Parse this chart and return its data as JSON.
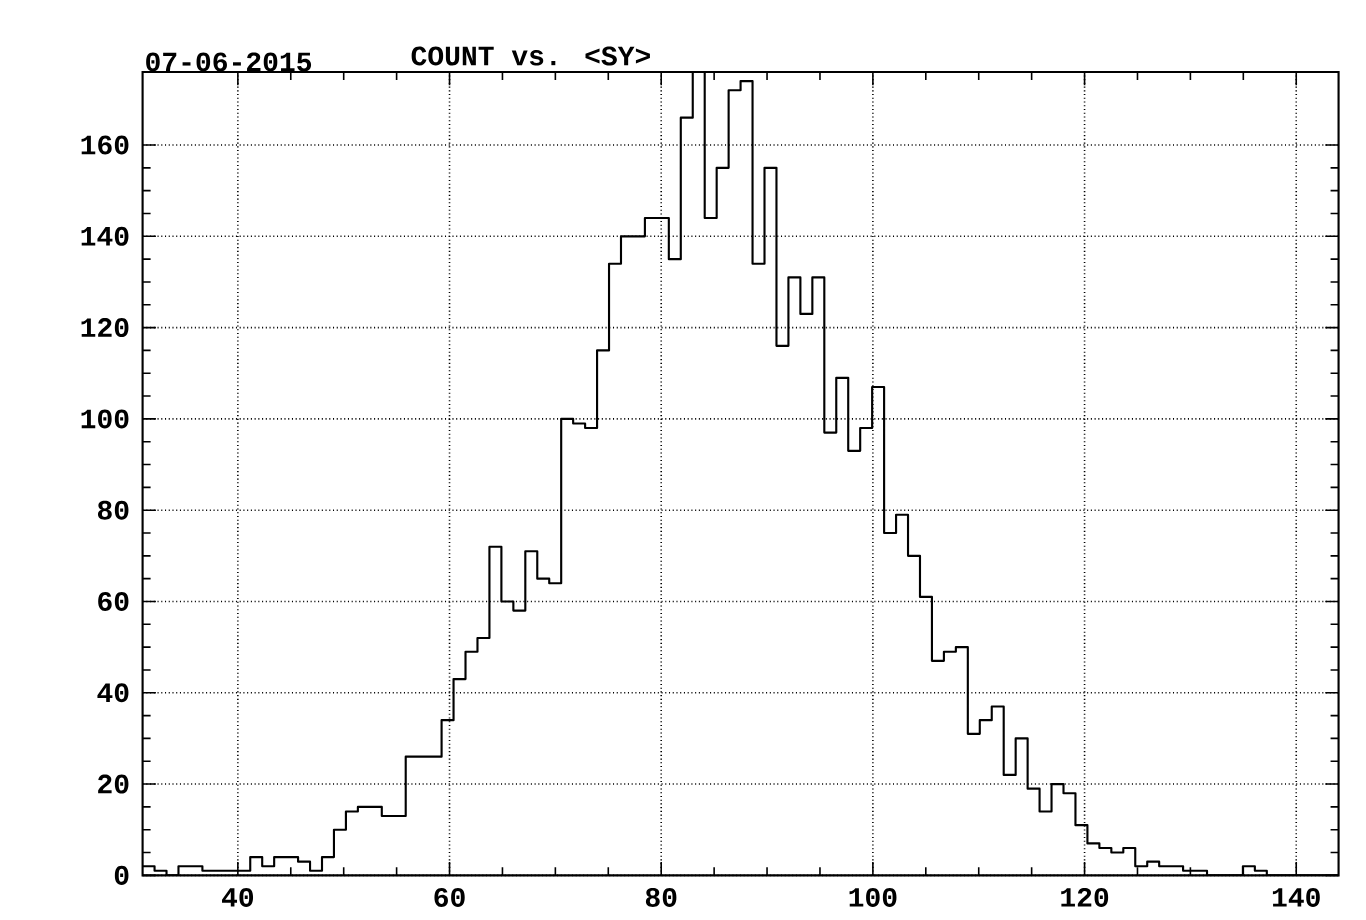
{
  "chart_data": {
    "type": "histogram",
    "title": "COUNT      vs.      <SY>",
    "annotations": [
      "07-06-2015"
    ],
    "bins": [
      31.0,
      32.13,
      33.26,
      34.39,
      35.52,
      36.65,
      37.78,
      38.91,
      40.04,
      41.17,
      42.3,
      43.43,
      44.56,
      45.69,
      46.82,
      47.95,
      49.08,
      50.21,
      51.34,
      52.47,
      53.6,
      54.73,
      55.86,
      56.99,
      58.12,
      59.25,
      60.38,
      61.51,
      62.64,
      63.77,
      64.9,
      66.03,
      67.16,
      68.29,
      69.42,
      70.55,
      71.68,
      72.81,
      73.94,
      75.07,
      76.2,
      77.33,
      78.46,
      79.59,
      80.72,
      81.85,
      82.98,
      84.11,
      85.24,
      86.37,
      87.5,
      88.63,
      89.76,
      90.89,
      92.02,
      93.15,
      94.28,
      95.41,
      96.54,
      97.67,
      98.8,
      99.93,
      101.06,
      102.19,
      103.32,
      104.45,
      105.58,
      106.71,
      107.84,
      108.97,
      110.1,
      111.23,
      112.36,
      113.49,
      114.62,
      115.75,
      116.88,
      118.01,
      119.14,
      120.27,
      121.4,
      122.53,
      123.66,
      124.79,
      125.92,
      127.05,
      128.18,
      129.31,
      130.44,
      131.57,
      132.7,
      133.83,
      134.96,
      136.09,
      137.22,
      138.35,
      139.48,
      140.61,
      141.74,
      142.87,
      144.0
    ],
    "values": [
      2,
      1,
      0,
      2,
      2,
      1,
      1,
      1,
      1,
      4,
      2,
      4,
      4,
      3,
      1,
      4,
      10,
      14,
      15,
      15,
      13,
      13,
      26,
      26,
      26,
      34,
      43,
      49,
      52,
      72,
      60,
      58,
      71,
      65,
      64,
      100,
      99,
      98,
      115,
      134,
      140,
      140,
      144,
      144,
      135,
      166,
      176,
      144,
      155,
      172,
      174,
      134,
      155,
      116,
      131,
      123,
      131,
      97,
      109,
      93,
      98,
      107,
      75,
      79,
      70,
      61,
      47,
      49,
      50,
      31,
      34,
      37,
      22,
      30,
      19,
      14,
      20,
      18,
      11,
      7,
      6,
      5,
      6,
      2,
      3,
      2,
      2,
      1,
      1,
      0,
      0,
      0,
      2,
      1,
      0,
      0,
      0,
      0,
      0,
      0
    ],
    "color": "#000000",
    "xlim": [
      31,
      144
    ],
    "ylim": [
      0,
      176
    ],
    "xticks": [
      40,
      60,
      80,
      100,
      120,
      140
    ],
    "yticks": [
      0,
      20,
      40,
      60,
      80,
      100,
      120,
      140,
      160
    ],
    "grid": true
  }
}
